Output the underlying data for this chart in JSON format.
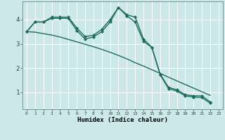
{
  "xlabel": "Humidex (Indice chaleur)",
  "bg_color": "#cce8e8",
  "grid_color": "#ffffff",
  "line_color": "#1e6b5e",
  "x_ticks": [
    0,
    1,
    2,
    3,
    4,
    5,
    6,
    7,
    8,
    9,
    10,
    11,
    12,
    13,
    14,
    15,
    16,
    17,
    18,
    19,
    20,
    21,
    22,
    23
  ],
  "y_ticks": [
    1,
    2,
    3,
    4
  ],
  "ylim": [
    0.3,
    4.75
  ],
  "xlim": [
    -0.5,
    23.5
  ],
  "series1_x": [
    0,
    1,
    2,
    3,
    4,
    5,
    6,
    7,
    8,
    9,
    10,
    11,
    12,
    13,
    14,
    15,
    16,
    17,
    18,
    19,
    20,
    21,
    22
  ],
  "series1_y": [
    3.5,
    3.9,
    3.9,
    4.1,
    4.1,
    4.1,
    3.65,
    3.3,
    3.35,
    3.6,
    4.0,
    4.5,
    4.2,
    4.1,
    3.2,
    2.85,
    1.75,
    1.2,
    1.1,
    0.9,
    0.85,
    0.85,
    0.6
  ],
  "series2_x": [
    0,
    1,
    2,
    3,
    4,
    5,
    6,
    7,
    8,
    9,
    10,
    11,
    12,
    13,
    14,
    15,
    16,
    17,
    18,
    19,
    20,
    21,
    22
  ],
  "series2_y": [
    3.5,
    3.9,
    3.9,
    4.05,
    4.05,
    4.05,
    3.55,
    3.2,
    3.28,
    3.5,
    3.9,
    4.5,
    4.15,
    3.9,
    3.1,
    2.85,
    1.72,
    1.15,
    1.05,
    0.85,
    0.8,
    0.78,
    0.55
  ],
  "series3_x": [
    0,
    1,
    2,
    3,
    4,
    5,
    6,
    7,
    8,
    9,
    10,
    11,
    12,
    13,
    14,
    15,
    16,
    17,
    18,
    19,
    20,
    21,
    22
  ],
  "series3_y": [
    3.5,
    3.48,
    3.42,
    3.36,
    3.28,
    3.18,
    3.08,
    2.98,
    2.88,
    2.77,
    2.65,
    2.52,
    2.38,
    2.22,
    2.08,
    1.93,
    1.78,
    1.62,
    1.47,
    1.32,
    1.17,
    1.02,
    0.87
  ]
}
